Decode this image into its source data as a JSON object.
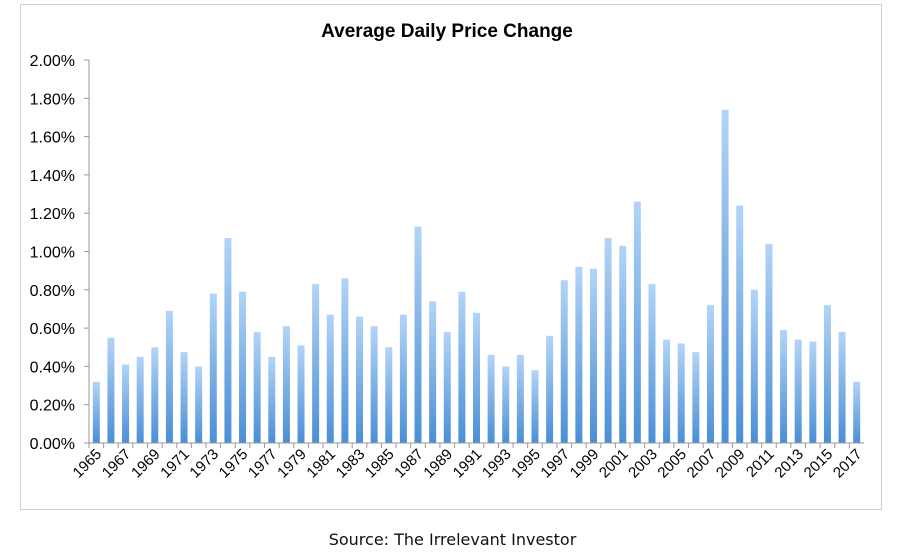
{
  "chart_data": {
    "type": "bar",
    "title": "Average Daily Price Change",
    "xlabel": "",
    "ylabel": "",
    "ylim": [
      0,
      2.0
    ],
    "yticks": [
      "0.00%",
      "0.20%",
      "0.40%",
      "0.60%",
      "0.80%",
      "1.00%",
      "1.20%",
      "1.40%",
      "1.60%",
      "1.80%",
      "2.00%"
    ],
    "grid": false,
    "categories": [
      1965,
      1966,
      1967,
      1968,
      1969,
      1970,
      1971,
      1972,
      1973,
      1974,
      1975,
      1976,
      1977,
      1978,
      1979,
      1980,
      1981,
      1982,
      1983,
      1984,
      1985,
      1986,
      1987,
      1988,
      1989,
      1990,
      1991,
      1992,
      1993,
      1994,
      1995,
      1996,
      1997,
      1998,
      1999,
      2000,
      2001,
      2002,
      2003,
      2004,
      2005,
      2006,
      2007,
      2008,
      2009,
      2010,
      2011,
      2012,
      2013,
      2014,
      2015,
      2016,
      2017
    ],
    "values": [
      0.32,
      0.55,
      0.41,
      0.45,
      0.5,
      0.69,
      0.475,
      0.4,
      0.78,
      1.07,
      0.79,
      0.58,
      0.45,
      0.61,
      0.51,
      0.83,
      0.67,
      0.86,
      0.66,
      0.61,
      0.5,
      0.67,
      1.13,
      0.74,
      0.58,
      0.79,
      0.68,
      0.46,
      0.4,
      0.46,
      0.38,
      0.56,
      0.85,
      0.92,
      0.91,
      1.07,
      1.03,
      1.26,
      0.83,
      0.54,
      0.52,
      0.475,
      0.72,
      1.74,
      1.24,
      0.8,
      1.04,
      0.59,
      0.54,
      0.53,
      0.72,
      0.58,
      0.32
    ],
    "bar_color_top": "#b3d4f7",
    "bar_color_bottom": "#4a8fd6"
  },
  "source": "Source: The Irrelevant Investor"
}
